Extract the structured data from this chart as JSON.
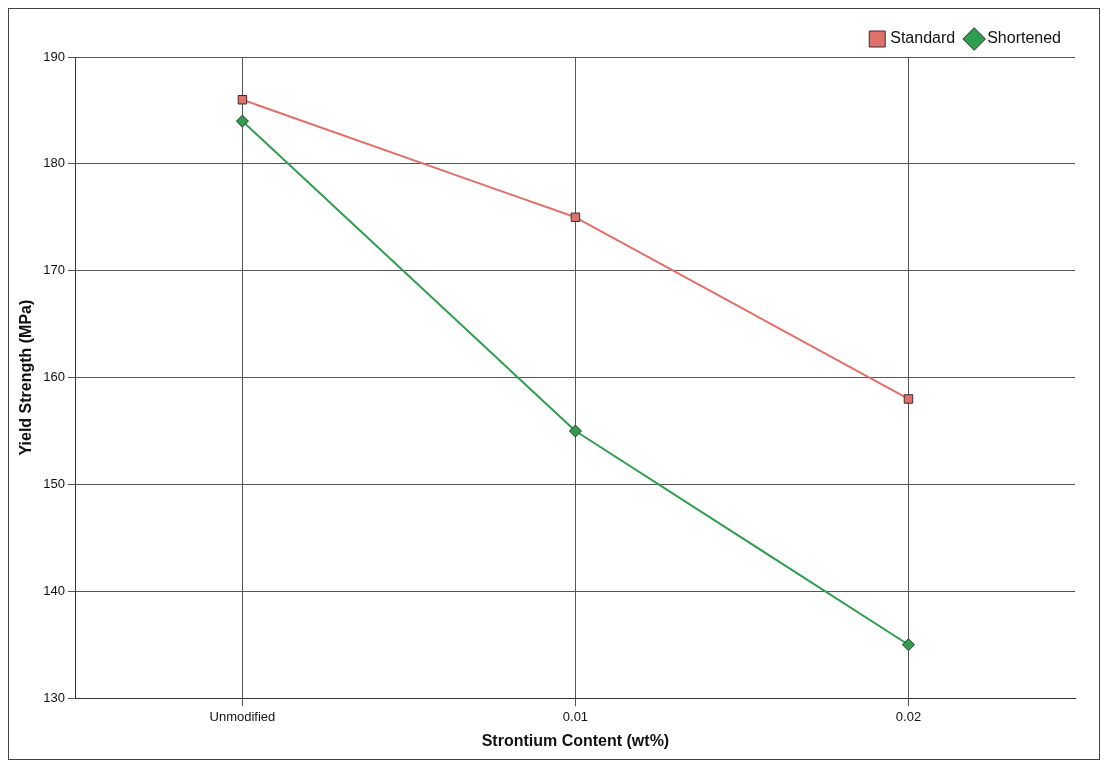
{
  "chart_data": {
    "type": "line",
    "xlabel": "Strontium Content (wt%)",
    "ylabel": "Yield Strength (MPa)",
    "categories": [
      "Unmodified",
      "0.01",
      "0.02"
    ],
    "series": [
      {
        "name": "Standard",
        "color": "#e0706a",
        "values": [
          186,
          175,
          158
        ],
        "marker": "square"
      },
      {
        "name": "Shortened",
        "color": "#2e9e4e",
        "values": [
          184,
          155,
          135
        ],
        "marker": "diamond"
      }
    ],
    "ylim": [
      130,
      190
    ],
    "yticks": [
      130,
      140,
      150,
      160,
      170,
      180,
      190
    ],
    "grid": true,
    "legend": "top right",
    "line_style": "solid"
  }
}
